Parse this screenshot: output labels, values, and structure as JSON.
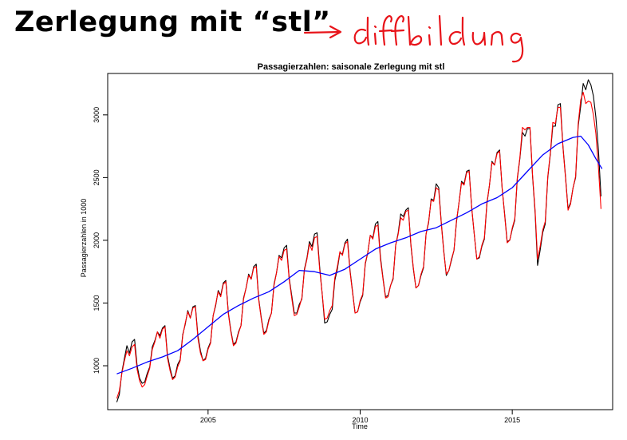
{
  "slide": {
    "title": "Zerlegung mit “stl”",
    "handwritten_note": "diffbildung"
  },
  "colors": {
    "observed": "#000000",
    "fitted": "#ff0000",
    "trend": "#0000ff",
    "annotation_ink": "#e8141a"
  },
  "chart_data": {
    "type": "line",
    "title": "Passagierzahlen: saisonale Zerlegung mit stl",
    "xlabel": "Time",
    "ylabel": "Passagierzahlen in 1000",
    "xlim": [
      2001.7,
      2018.3
    ],
    "ylim": [
      650,
      3330
    ],
    "xticks": [
      2005,
      2010,
      2015
    ],
    "yticks": [
      1000,
      1500,
      2000,
      2500,
      3000
    ],
    "grid": false,
    "legend": "none",
    "series": [
      {
        "role": "observed",
        "x": [
          2002.0,
          2002.083,
          2002.167,
          2002.25,
          2002.333,
          2002.417,
          2002.5,
          2002.583,
          2002.667,
          2002.75,
          2002.833,
          2002.917,
          2003.0,
          2003.083,
          2003.167,
          2003.25,
          2003.333,
          2003.417,
          2003.5,
          2003.583,
          2003.667,
          2003.75,
          2003.833,
          2003.917,
          2004.0,
          2004.083,
          2004.167,
          2004.25,
          2004.333,
          2004.417,
          2004.5,
          2004.583,
          2004.667,
          2004.75,
          2004.833,
          2004.917,
          2005.0,
          2005.083,
          2005.167,
          2005.25,
          2005.333,
          2005.417,
          2005.5,
          2005.583,
          2005.667,
          2005.75,
          2005.833,
          2005.917,
          2006.0,
          2006.083,
          2006.167,
          2006.25,
          2006.333,
          2006.417,
          2006.5,
          2006.583,
          2006.667,
          2006.75,
          2006.833,
          2006.917,
          2007.0,
          2007.083,
          2007.167,
          2007.25,
          2007.333,
          2007.417,
          2007.5,
          2007.583,
          2007.667,
          2007.75,
          2007.833,
          2007.917,
          2008.0,
          2008.083,
          2008.167,
          2008.25,
          2008.333,
          2008.417,
          2008.5,
          2008.583,
          2008.667,
          2008.75,
          2008.833,
          2008.917,
          2009.0,
          2009.083,
          2009.167,
          2009.25,
          2009.333,
          2009.417,
          2009.5,
          2009.583,
          2009.667,
          2009.75,
          2009.833,
          2009.917,
          2010.0,
          2010.083,
          2010.167,
          2010.25,
          2010.333,
          2010.417,
          2010.5,
          2010.583,
          2010.667,
          2010.75,
          2010.833,
          2010.917,
          2011.0,
          2011.083,
          2011.167,
          2011.25,
          2011.333,
          2011.417,
          2011.5,
          2011.583,
          2011.667,
          2011.75,
          2011.833,
          2011.917,
          2012.0,
          2012.083,
          2012.167,
          2012.25,
          2012.333,
          2012.417,
          2012.5,
          2012.583,
          2012.667,
          2012.75,
          2012.833,
          2012.917,
          2013.0,
          2013.083,
          2013.167,
          2013.25,
          2013.333,
          2013.417,
          2013.5,
          2013.583,
          2013.667,
          2013.75,
          2013.833,
          2013.917,
          2014.0,
          2014.083,
          2014.167,
          2014.25,
          2014.333,
          2014.417,
          2014.5,
          2014.583,
          2014.667,
          2014.75,
          2014.833,
          2014.917,
          2015.0,
          2015.083,
          2015.167,
          2015.25,
          2015.333,
          2015.417,
          2015.5,
          2015.583,
          2015.667,
          2015.75,
          2015.833,
          2015.917,
          2016.0,
          2016.083,
          2016.167,
          2016.25,
          2016.333,
          2016.417,
          2016.5,
          2016.583,
          2016.667,
          2016.75,
          2016.833,
          2016.917,
          2017.0,
          2017.083,
          2017.167,
          2017.25,
          2017.333,
          2017.417,
          2017.5,
          2017.583,
          2017.667,
          2017.75,
          2017.833,
          2017.917
        ],
        "y": [
          710,
          770,
          950,
          1060,
          1160,
          1100,
          1190,
          1210,
          1000,
          900,
          860,
          870,
          940,
          990,
          1150,
          1200,
          1270,
          1240,
          1300,
          1320,
          1080,
          980,
          900,
          920,
          1010,
          1050,
          1250,
          1330,
          1440,
          1380,
          1470,
          1480,
          1240,
          1120,
          1040,
          1060,
          1140,
          1190,
          1400,
          1480,
          1600,
          1560,
          1660,
          1680,
          1420,
          1280,
          1170,
          1190,
          1270,
          1320,
          1540,
          1620,
          1730,
          1690,
          1790,
          1810,
          1530,
          1380,
          1260,
          1280,
          1370,
          1420,
          1650,
          1740,
          1880,
          1860,
          1940,
          1960,
          1700,
          1560,
          1420,
          1420,
          1490,
          1530,
          1770,
          1860,
          1990,
          1950,
          2050,
          2060,
          1790,
          1580,
          1340,
          1350,
          1410,
          1450,
          1680,
          1770,
          1900,
          1890,
          1980,
          2010,
          1760,
          1590,
          1420,
          1430,
          1510,
          1560,
          1810,
          1900,
          2040,
          2020,
          2130,
          2150,
          1870,
          1700,
          1550,
          1560,
          1640,
          1690,
          1960,
          2060,
          2210,
          2190,
          2240,
          2260,
          1960,
          1770,
          1620,
          1640,
          1720,
          1780,
          2050,
          2140,
          2330,
          2320,
          2450,
          2420,
          2140,
          1910,
          1720,
          1760,
          1840,
          1920,
          2150,
          2300,
          2470,
          2450,
          2550,
          2560,
          2260,
          2050,
          1850,
          1860,
          1950,
          2010,
          2290,
          2440,
          2630,
          2600,
          2700,
          2720,
          2410,
          2210,
          1990,
          2000,
          2090,
          2160,
          2490,
          2650,
          2860,
          2830,
          2890,
          2890,
          2510,
          2220,
          1800,
          1920,
          2060,
          2130,
          2500,
          2680,
          2910,
          2910,
          3080,
          3090,
          2750,
          2510,
          2250,
          2300,
          2420,
          2500,
          2910,
          3070,
          3250,
          3200,
          3280,
          3240,
          3150,
          2980,
          2720,
          2350
        ],
        "color": "#000000"
      },
      {
        "role": "fitted",
        "x": [
          2002.0,
          2002.083,
          2002.167,
          2002.25,
          2002.333,
          2002.417,
          2002.5,
          2002.583,
          2002.667,
          2002.75,
          2002.833,
          2002.917,
          2003.0,
          2003.083,
          2003.167,
          2003.25,
          2003.333,
          2003.417,
          2003.5,
          2003.583,
          2003.667,
          2003.75,
          2003.833,
          2003.917,
          2004.0,
          2004.083,
          2004.167,
          2004.25,
          2004.333,
          2004.417,
          2004.5,
          2004.583,
          2004.667,
          2004.75,
          2004.833,
          2004.917,
          2005.0,
          2005.083,
          2005.167,
          2005.25,
          2005.333,
          2005.417,
          2005.5,
          2005.583,
          2005.667,
          2005.75,
          2005.833,
          2005.917,
          2006.0,
          2006.083,
          2006.167,
          2006.25,
          2006.333,
          2006.417,
          2006.5,
          2006.583,
          2006.667,
          2006.75,
          2006.833,
          2006.917,
          2007.0,
          2007.083,
          2007.167,
          2007.25,
          2007.333,
          2007.417,
          2007.5,
          2007.583,
          2007.667,
          2007.75,
          2007.833,
          2007.917,
          2008.0,
          2008.083,
          2008.167,
          2008.25,
          2008.333,
          2008.417,
          2008.5,
          2008.583,
          2008.667,
          2008.75,
          2008.833,
          2008.917,
          2009.0,
          2009.083,
          2009.167,
          2009.25,
          2009.333,
          2009.417,
          2009.5,
          2009.583,
          2009.667,
          2009.75,
          2009.833,
          2009.917,
          2010.0,
          2010.083,
          2010.167,
          2010.25,
          2010.333,
          2010.417,
          2010.5,
          2010.583,
          2010.667,
          2010.75,
          2010.833,
          2010.917,
          2011.0,
          2011.083,
          2011.167,
          2011.25,
          2011.333,
          2011.417,
          2011.5,
          2011.583,
          2011.667,
          2011.75,
          2011.833,
          2011.917,
          2012.0,
          2012.083,
          2012.167,
          2012.25,
          2012.333,
          2012.417,
          2012.5,
          2012.583,
          2012.667,
          2012.75,
          2012.833,
          2012.917,
          2013.0,
          2013.083,
          2013.167,
          2013.25,
          2013.333,
          2013.417,
          2013.5,
          2013.583,
          2013.667,
          2013.75,
          2013.833,
          2013.917,
          2014.0,
          2014.083,
          2014.167,
          2014.25,
          2014.333,
          2014.417,
          2014.5,
          2014.583,
          2014.667,
          2014.75,
          2014.833,
          2014.917,
          2015.0,
          2015.083,
          2015.167,
          2015.25,
          2015.333,
          2015.417,
          2015.5,
          2015.583,
          2015.667,
          2015.75,
          2015.833,
          2015.917,
          2016.0,
          2016.083,
          2016.167,
          2016.25,
          2016.333,
          2016.417,
          2016.5,
          2016.583,
          2016.667,
          2016.75,
          2016.833,
          2016.917,
          2017.0,
          2017.083,
          2017.167,
          2017.25,
          2017.333,
          2017.417,
          2017.5,
          2017.583,
          2017.667,
          2017.75,
          2017.833,
          2017.917
        ],
        "y": [
          740,
          800,
          940,
          1040,
          1120,
          1080,
          1150,
          1170,
          970,
          880,
          830,
          850,
          920,
          980,
          1130,
          1190,
          1270,
          1220,
          1290,
          1310,
          1060,
          960,
          890,
          910,
          990,
          1040,
          1240,
          1340,
          1430,
          1380,
          1460,
          1470,
          1220,
          1100,
          1040,
          1050,
          1130,
          1180,
          1400,
          1490,
          1590,
          1550,
          1650,
          1670,
          1410,
          1270,
          1160,
          1180,
          1260,
          1320,
          1530,
          1620,
          1720,
          1690,
          1780,
          1790,
          1520,
          1370,
          1250,
          1270,
          1360,
          1420,
          1640,
          1740,
          1870,
          1840,
          1920,
          1930,
          1690,
          1540,
          1400,
          1410,
          1470,
          1540,
          1760,
          1850,
          1970,
          1920,
          2020,
          2030,
          1770,
          1580,
          1370,
          1380,
          1440,
          1480,
          1700,
          1790,
          1910,
          1880,
          1970,
          1990,
          1750,
          1580,
          1420,
          1430,
          1520,
          1570,
          1820,
          1900,
          2040,
          2010,
          2110,
          2120,
          1850,
          1690,
          1540,
          1550,
          1640,
          1700,
          1960,
          2050,
          2180,
          2160,
          2230,
          2240,
          1970,
          1780,
          1620,
          1640,
          1730,
          1790,
          2050,
          2150,
          2320,
          2310,
          2420,
          2400,
          2130,
          1900,
          1730,
          1760,
          1850,
          1920,
          2160,
          2300,
          2460,
          2440,
          2540,
          2550,
          2260,
          2050,
          1850,
          1870,
          1960,
          2020,
          2300,
          2440,
          2620,
          2600,
          2690,
          2710,
          2420,
          2200,
          1980,
          2000,
          2100,
          2170,
          2500,
          2660,
          2900,
          2880,
          2900,
          2900,
          2520,
          2240,
          1850,
          1950,
          2080,
          2150,
          2510,
          2690,
          2940,
          2930,
          3060,
          3060,
          2740,
          2500,
          2240,
          2290,
          2420,
          2510,
          2930,
          3120,
          3180,
          3090,
          3110,
          3100,
          3000,
          2850,
          2580,
          2250
        ],
        "color": "#ff0000"
      },
      {
        "role": "trend",
        "x": [
          2002.0,
          2002.5,
          2003.0,
          2003.5,
          2004.0,
          2004.5,
          2005.0,
          2005.5,
          2006.0,
          2006.5,
          2007.0,
          2007.5,
          2008.0,
          2008.5,
          2009.0,
          2009.5,
          2010.0,
          2010.5,
          2011.0,
          2011.5,
          2012.0,
          2012.5,
          2013.0,
          2013.5,
          2014.0,
          2014.5,
          2015.0,
          2015.5,
          2016.0,
          2016.5,
          2017.0,
          2017.25,
          2017.5,
          2017.75,
          2017.95
        ],
        "y": [
          935,
          980,
          1030,
          1070,
          1120,
          1210,
          1310,
          1410,
          1480,
          1540,
          1590,
          1670,
          1760,
          1750,
          1720,
          1770,
          1850,
          1930,
          1980,
          2020,
          2070,
          2100,
          2160,
          2220,
          2290,
          2340,
          2420,
          2550,
          2680,
          2770,
          2820,
          2830,
          2760,
          2650,
          2570
        ],
        "color": "#0000ff"
      }
    ]
  }
}
